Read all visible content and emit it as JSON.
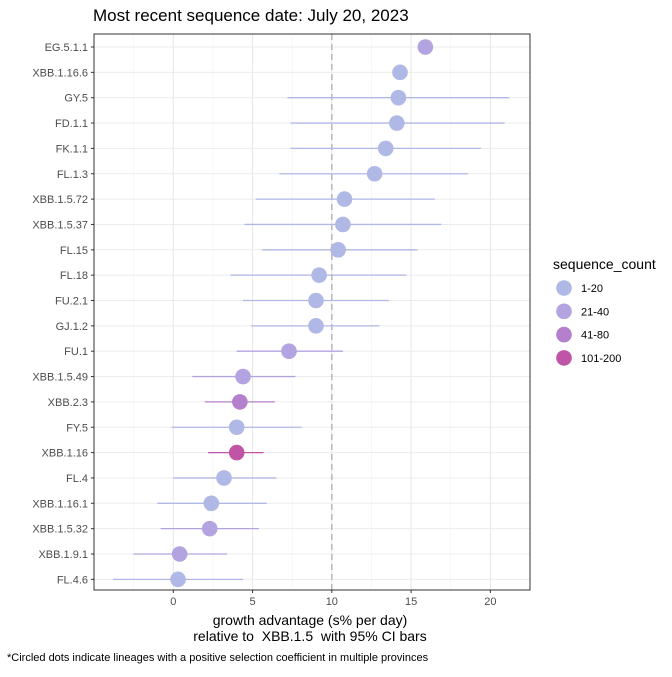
{
  "chart_data": {
    "type": "scatter",
    "title": "Most recent sequence date: July 20, 2023",
    "xlabel_line1": "growth advantage (s% per day)",
    "xlabel_line2": "relative to  XBB.1.5  with 95% CI bars",
    "footnote": "*Circled dots indicate lineages with a positive selection coefficient in multiple provinces",
    "xlim": [
      -5,
      22.5
    ],
    "xticks": [
      0,
      5,
      10,
      15,
      20
    ],
    "reference_line_x": 10,
    "grid": true,
    "legend": {
      "title": "sequence_count",
      "position": "right",
      "entries": [
        {
          "label": "1-20",
          "color": "#B0B8E6"
        },
        {
          "label": "21-40",
          "color": "#B3A3E0"
        },
        {
          "label": "41-80",
          "color": "#B47FCC"
        },
        {
          "label": "101-200",
          "color": "#C055A8"
        }
      ]
    },
    "lineages": [
      {
        "name": "EG.5.1.1",
        "value": 15.9,
        "low": null,
        "high": null,
        "group": "21-40"
      },
      {
        "name": "XBB.1.16.6",
        "value": 14.3,
        "low": null,
        "high": null,
        "group": "1-20"
      },
      {
        "name": "GY.5",
        "value": 14.2,
        "low": 7.2,
        "high": 21.2,
        "group": "1-20"
      },
      {
        "name": "FD.1.1",
        "value": 14.1,
        "low": 7.4,
        "high": 20.9,
        "group": "1-20"
      },
      {
        "name": "FK.1.1",
        "value": 13.4,
        "low": 7.4,
        "high": 19.4,
        "group": "1-20"
      },
      {
        "name": "FL.1.3",
        "value": 12.7,
        "low": 6.7,
        "high": 18.6,
        "group": "1-20"
      },
      {
        "name": "XBB.1.5.72",
        "value": 10.8,
        "low": 5.2,
        "high": 16.5,
        "group": "1-20"
      },
      {
        "name": "XBB.1.5.37",
        "value": 10.7,
        "low": 4.5,
        "high": 16.9,
        "group": "1-20"
      },
      {
        "name": "FL.15",
        "value": 10.4,
        "low": 5.6,
        "high": 15.4,
        "group": "1-20"
      },
      {
        "name": "FL.18",
        "value": 9.2,
        "low": 3.6,
        "high": 14.7,
        "group": "1-20"
      },
      {
        "name": "FU.2.1",
        "value": 9.0,
        "low": 4.4,
        "high": 13.6,
        "group": "1-20"
      },
      {
        "name": "GJ.1.2",
        "value": 9.0,
        "low": 4.9,
        "high": 13.0,
        "group": "1-20"
      },
      {
        "name": "FU.1",
        "value": 7.3,
        "low": 4.0,
        "high": 10.7,
        "group": "21-40"
      },
      {
        "name": "XBB.1.5.49",
        "value": 4.4,
        "low": 1.2,
        "high": 7.7,
        "group": "21-40"
      },
      {
        "name": "XBB.2.3",
        "value": 4.2,
        "low": 2.0,
        "high": 6.4,
        "group": "41-80"
      },
      {
        "name": "FY.5",
        "value": 4.0,
        "low": -0.1,
        "high": 8.1,
        "group": "1-20"
      },
      {
        "name": "XBB.1.16",
        "value": 4.0,
        "low": 2.2,
        "high": 5.7,
        "group": "101-200"
      },
      {
        "name": "FL.4",
        "value": 3.2,
        "low": 0.0,
        "high": 6.5,
        "group": "1-20"
      },
      {
        "name": "XBB.1.16.1",
        "value": 2.4,
        "low": -1.0,
        "high": 5.9,
        "group": "1-20"
      },
      {
        "name": "XBB.1.5.32",
        "value": 2.3,
        "low": -0.8,
        "high": 5.4,
        "group": "21-40"
      },
      {
        "name": "XBB.1.9.1",
        "value": 0.4,
        "low": -2.5,
        "high": 3.4,
        "group": "21-40"
      },
      {
        "name": "FL.4.6",
        "value": 0.3,
        "low": -3.8,
        "high": 4.4,
        "group": "1-20"
      }
    ]
  }
}
